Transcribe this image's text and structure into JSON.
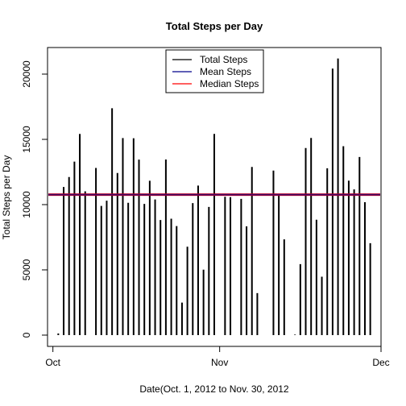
{
  "chart_data": {
    "type": "bar",
    "title": "Total Steps per Day",
    "xlabel": "Date(Oct. 1, 2012 to Nov. 30, 2012",
    "ylabel": "Total Steps per Day",
    "x_ticks": [
      {
        "label": "Oct",
        "date": "2012-10-01"
      },
      {
        "label": "Nov",
        "date": "2012-11-01"
      },
      {
        "label": "Dec",
        "date": "2012-12-01"
      }
    ],
    "y_ticks": [
      0,
      5000,
      10000,
      15000,
      20000
    ],
    "ylim": [
      0,
      22000
    ],
    "xlim": [
      "2012-09-30",
      "2012-12-01"
    ],
    "legend": {
      "position": "top-center",
      "entries": [
        {
          "label": "Total Steps",
          "color": "#000000"
        },
        {
          "label": "Mean Steps",
          "color": "#00008B"
        },
        {
          "label": "Median Steps",
          "color": "#FF0000"
        }
      ]
    },
    "mean": 10766,
    "median": 10765,
    "series": [
      {
        "name": "Total Steps",
        "color": "#000000",
        "x": [
          "2012-10-01",
          "2012-10-02",
          "2012-10-03",
          "2012-10-04",
          "2012-10-05",
          "2012-10-06",
          "2012-10-07",
          "2012-10-08",
          "2012-10-09",
          "2012-10-10",
          "2012-10-11",
          "2012-10-12",
          "2012-10-13",
          "2012-10-14",
          "2012-10-15",
          "2012-10-16",
          "2012-10-17",
          "2012-10-18",
          "2012-10-19",
          "2012-10-20",
          "2012-10-21",
          "2012-10-22",
          "2012-10-23",
          "2012-10-24",
          "2012-10-25",
          "2012-10-26",
          "2012-10-27",
          "2012-10-28",
          "2012-10-29",
          "2012-10-30",
          "2012-10-31",
          "2012-11-01",
          "2012-11-02",
          "2012-11-03",
          "2012-11-04",
          "2012-11-05",
          "2012-11-06",
          "2012-11-07",
          "2012-11-08",
          "2012-11-09",
          "2012-11-10",
          "2012-11-11",
          "2012-11-12",
          "2012-11-13",
          "2012-11-14",
          "2012-11-15",
          "2012-11-16",
          "2012-11-17",
          "2012-11-18",
          "2012-11-19",
          "2012-11-20",
          "2012-11-21",
          "2012-11-22",
          "2012-11-23",
          "2012-11-24",
          "2012-11-25",
          "2012-11-26",
          "2012-11-27",
          "2012-11-28",
          "2012-11-29",
          "2012-11-30"
        ],
        "values": [
          0,
          126,
          11352,
          12116,
          13294,
          15420,
          11015,
          0,
          12811,
          9900,
          10304,
          17382,
          12426,
          15098,
          10139,
          15084,
          13452,
          10056,
          11829,
          10395,
          8821,
          13460,
          8918,
          8355,
          2492,
          6778,
          10119,
          11458,
          5018,
          9819,
          15414,
          0,
          10600,
          10571,
          0,
          10439,
          8334,
          12883,
          3219,
          0,
          0,
          12608,
          10765,
          7336,
          0,
          41,
          5441,
          14339,
          15110,
          8841,
          4472,
          12787,
          20427,
          21194,
          14478,
          11834,
          11162,
          13646,
          10183,
          7047,
          0
        ]
      }
    ]
  }
}
